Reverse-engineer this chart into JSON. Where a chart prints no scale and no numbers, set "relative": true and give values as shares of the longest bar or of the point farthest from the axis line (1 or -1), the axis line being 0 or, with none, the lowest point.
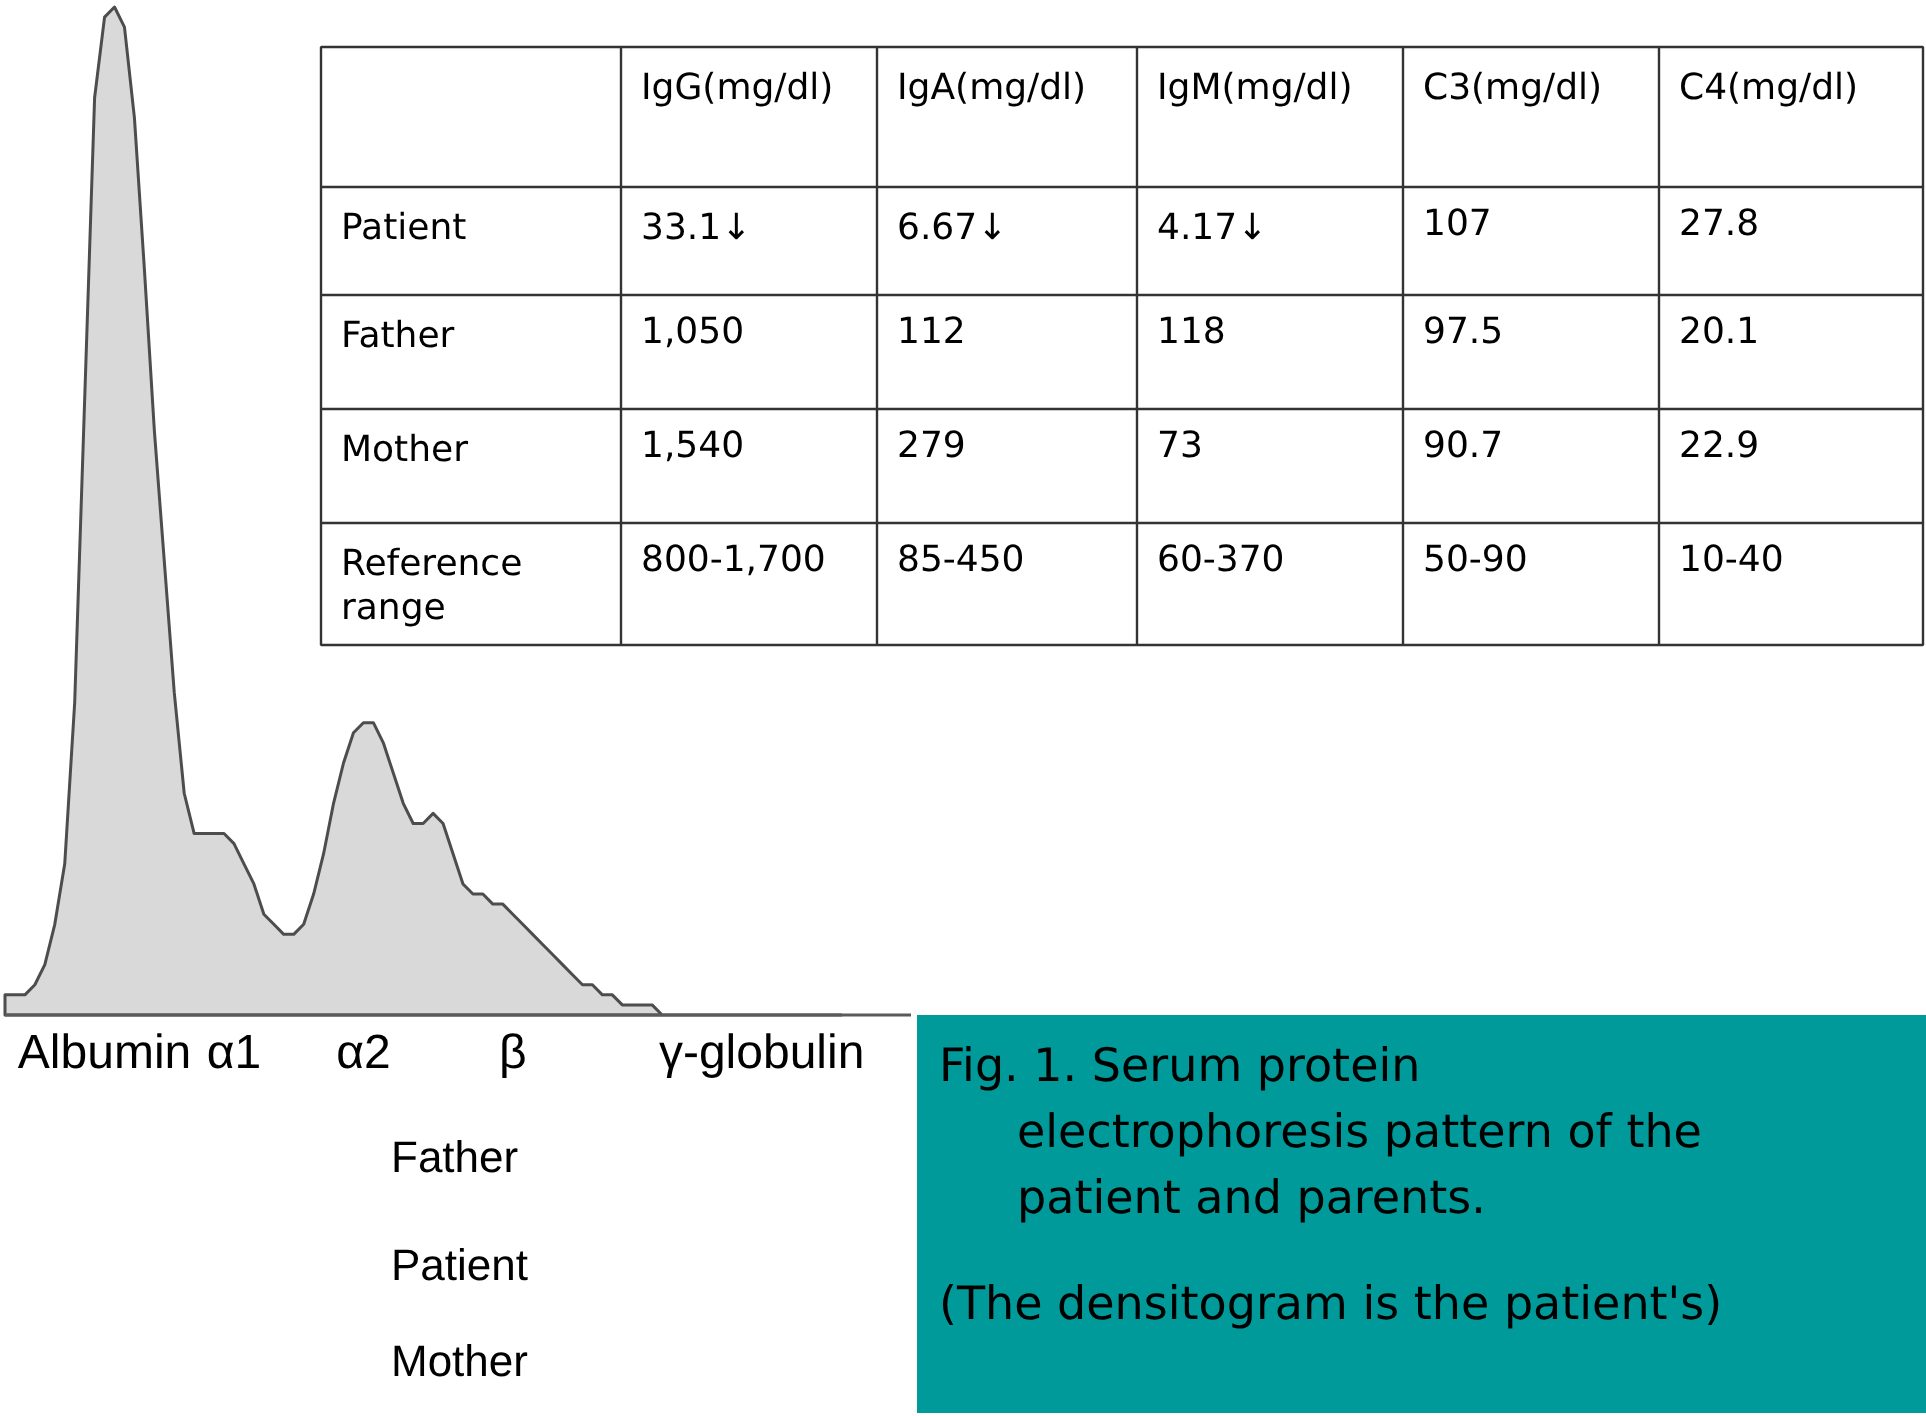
{
  "chart_data": [
    {
      "type": "area",
      "relative": true,
      "color": "#d9d9d9",
      "categories": [
        null,
        null,
        null,
        null,
        null,
        null,
        null,
        null,
        null,
        null,
        "Albumin",
        null,
        null,
        null,
        null,
        null,
        null,
        null,
        null,
        null,
        null,
        null,
        null,
        "α1",
        null,
        null,
        null,
        null,
        null,
        null,
        null,
        null,
        null,
        null,
        null,
        null,
        "α2",
        null,
        null,
        null,
        null,
        null,
        null,
        null,
        null,
        null,
        null,
        null,
        null,
        null,
        null,
        "β",
        null,
        null,
        null,
        null,
        null,
        null,
        null,
        null,
        null,
        null,
        null,
        null,
        null,
        null,
        null,
        null,
        null,
        null,
        null,
        null,
        null,
        null,
        null,
        null,
        "γ-globulin",
        null,
        null,
        null,
        null,
        null,
        null,
        null,
        null
      ],
      "values": [
        0.02,
        0.02,
        0.02,
        0.03,
        0.05,
        0.09,
        0.15,
        0.31,
        0.61,
        0.91,
        0.99,
        1.0,
        0.98,
        0.89,
        0.74,
        0.58,
        0.45,
        0.32,
        0.22,
        0.18,
        0.18,
        0.18,
        0.18,
        0.17,
        0.15,
        0.13,
        0.1,
        0.09,
        0.08,
        0.08,
        0.09,
        0.12,
        0.16,
        0.21,
        0.25,
        0.28,
        0.29,
        0.29,
        0.27,
        0.24,
        0.21,
        0.19,
        0.19,
        0.2,
        0.19,
        0.16,
        0.13,
        0.12,
        0.12,
        0.11,
        0.11,
        0.1,
        0.09,
        0.08,
        0.07,
        0.06,
        0.05,
        0.04,
        0.03,
        0.03,
        0.02,
        0.02,
        0.01,
        0.01,
        0.01,
        0.01,
        0,
        0,
        0,
        0,
        0,
        0,
        0,
        0,
        0,
        0,
        0,
        0,
        0,
        0,
        0,
        0,
        0,
        0,
        0
      ],
      "annotations": [
        "Father",
        "Patient",
        "Mother"
      ]
    },
    {
      "type": "other",
      "categories": [
        "IgG(mg/dl)",
        "IgA(mg/dl)",
        "IgM(mg/dl)",
        "C3(mg/dl)",
        "C4(mg/dl)"
      ],
      "y_categories": [
        "Patient",
        "Father",
        "Mother",
        "Reference range"
      ],
      "cell_labels": [
        [
          "33.1↓",
          "6.67↓",
          "4.17↓",
          "107",
          "27.8"
        ],
        [
          "1,050",
          "112",
          "118",
          "97.5",
          "20.1"
        ],
        [
          "1,540",
          "279",
          "73",
          "90.7",
          "22.9"
        ],
        [
          "800-1,700",
          "85-450",
          "60-370",
          "50-90",
          "10-40"
        ]
      ],
      "annotations": [
        "Fig. 1. Serum protein electrophoresis pattern of the patient and parents.",
        "(The densitogram is the patient's)"
      ]
    }
  ]
}
